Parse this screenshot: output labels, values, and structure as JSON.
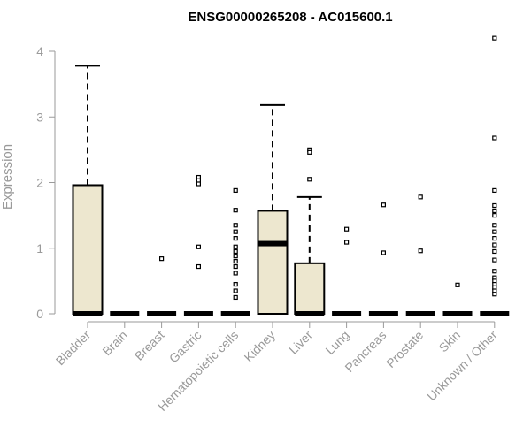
{
  "chart_data": {
    "type": "box",
    "title": "ENSG00000265208 - AC015600.1",
    "xlabel": "",
    "ylabel": "Expression",
    "ylim": [
      0,
      4.2
    ],
    "yticks": [
      0,
      1,
      2,
      3,
      4
    ],
    "grid": false,
    "legend": "none",
    "colors": {
      "box_fill": "#ede7cf",
      "box_stroke": "#000000",
      "axis": "#9a9a9a",
      "text": "#9a9a9a",
      "title": "#000000"
    },
    "categories": [
      "Bladder",
      "Brain",
      "Breast",
      "Gastric",
      "Hematopoietic cells",
      "Kidney",
      "Liver",
      "Lung",
      "Pancreas",
      "Prostate",
      "Skin",
      "Unknown / Other"
    ],
    "boxes": [
      {
        "q1": 0,
        "median": 0,
        "q3": 1.96,
        "whisker_low": 0,
        "whisker_high": 3.78,
        "outliers": []
      },
      {
        "q1": 0,
        "median": 0,
        "q3": 0,
        "whisker_low": 0,
        "whisker_high": 0,
        "outliers": []
      },
      {
        "q1": 0,
        "median": 0,
        "q3": 0,
        "whisker_low": 0,
        "whisker_high": 0,
        "outliers": [
          0.84
        ]
      },
      {
        "q1": 0,
        "median": 0,
        "q3": 0,
        "whisker_low": 0,
        "whisker_high": 0,
        "outliers": [
          2.08,
          2.03,
          1.98,
          1.02,
          0.72
        ]
      },
      {
        "q1": 0,
        "median": 0,
        "q3": 0,
        "whisker_low": 0,
        "whisker_high": 0,
        "outliers": [
          1.88,
          1.58,
          1.35,
          1.25,
          1.15,
          1.02,
          0.95,
          0.88,
          0.8,
          0.72,
          0.62,
          0.45,
          0.35,
          0.25
        ]
      },
      {
        "q1": 0,
        "median": 1.07,
        "q3": 1.57,
        "whisker_low": 0,
        "whisker_high": 3.18,
        "outliers": []
      },
      {
        "q1": 0,
        "median": 0,
        "q3": 0.77,
        "whisker_low": 0,
        "whisker_high": 1.78,
        "outliers": [
          2.5,
          2.46,
          2.05
        ]
      },
      {
        "q1": 0,
        "median": 0,
        "q3": 0,
        "whisker_low": 0,
        "whisker_high": 0,
        "outliers": [
          1.29,
          1.09
        ]
      },
      {
        "q1": 0,
        "median": 0,
        "q3": 0,
        "whisker_low": 0,
        "whisker_high": 0,
        "outliers": [
          1.66,
          0.93
        ]
      },
      {
        "q1": 0,
        "median": 0,
        "q3": 0,
        "whisker_low": 0,
        "whisker_high": 0,
        "outliers": [
          1.78,
          0.96
        ]
      },
      {
        "q1": 0,
        "median": 0,
        "q3": 0,
        "whisker_low": 0,
        "whisker_high": 0,
        "outliers": [
          0.44
        ]
      },
      {
        "q1": 0,
        "median": 0,
        "q3": 0,
        "whisker_low": 0,
        "whisker_high": 0,
        "outliers": [
          4.2,
          2.68,
          1.88,
          1.65,
          1.57,
          1.5,
          1.35,
          1.25,
          1.15,
          1.05,
          0.95,
          0.82,
          0.65,
          0.55,
          0.5,
          0.45,
          0.4,
          0.35,
          0.3
        ]
      }
    ]
  }
}
